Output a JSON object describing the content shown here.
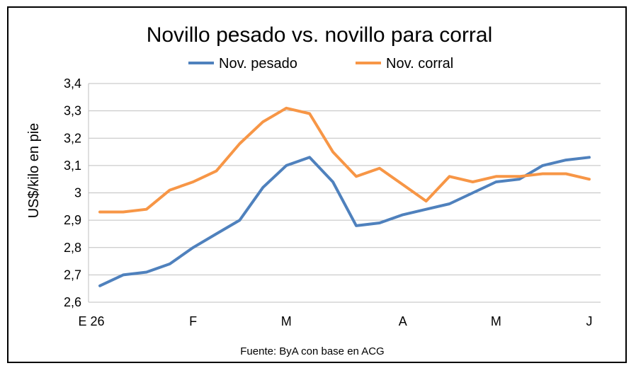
{
  "chart_data": {
    "type": "line",
    "title": "Novillo pesado vs. novillo para corral",
    "ylabel": "US$/kilo en pie",
    "xlabel": "",
    "ylim": [
      2.6,
      3.4
    ],
    "yticks": [
      "2,6",
      "2,7",
      "2,8",
      "2,9",
      "3",
      "3,1",
      "3,2",
      "3,3",
      "3,4"
    ],
    "ytick_values": [
      2.6,
      2.7,
      2.8,
      2.9,
      3.0,
      3.1,
      3.2,
      3.3,
      3.4
    ],
    "x_tick_labels": [
      {
        "label": "E 26",
        "index": 0
      },
      {
        "label": "F",
        "index": 4
      },
      {
        "label": "M",
        "index": 8
      },
      {
        "label": "A",
        "index": 13
      },
      {
        "label": "M",
        "index": 17
      },
      {
        "label": "J",
        "index": 21
      }
    ],
    "grid": true,
    "legend_position": "top",
    "source": "Fuente: ByA con base en ACG",
    "series": [
      {
        "name": "Nov. pesado",
        "color": "#4f81bd",
        "values": [
          2.66,
          2.7,
          2.71,
          2.74,
          2.8,
          2.85,
          2.9,
          3.02,
          3.1,
          3.13,
          3.04,
          2.88,
          2.89,
          2.92,
          2.94,
          2.96,
          3.0,
          3.04,
          3.05,
          3.1,
          3.12,
          3.13
        ]
      },
      {
        "name": "Nov. corral",
        "color": "#f79646",
        "values": [
          2.93,
          2.93,
          2.94,
          3.01,
          3.04,
          3.08,
          3.18,
          3.26,
          3.31,
          3.29,
          3.15,
          3.06,
          3.09,
          3.03,
          2.97,
          3.06,
          3.04,
          3.06,
          3.06,
          3.07,
          3.07,
          3.05
        ]
      }
    ]
  }
}
